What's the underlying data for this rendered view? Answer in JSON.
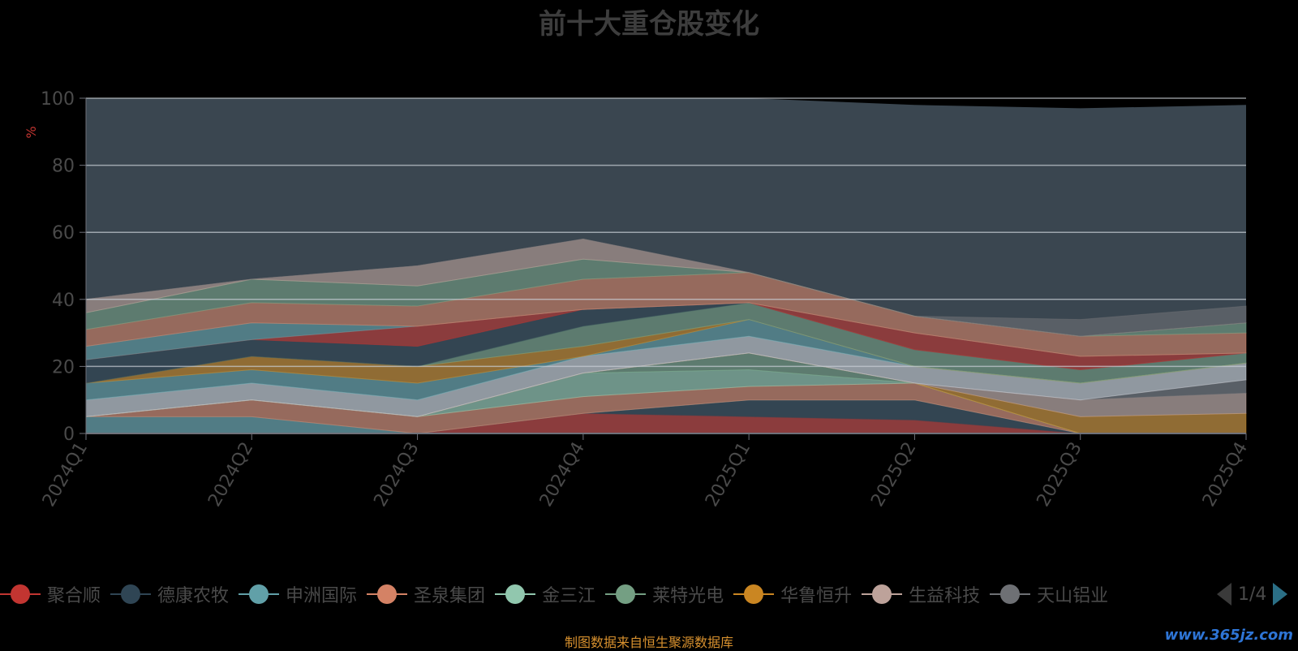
{
  "title": "前十大重仓股变化",
  "source_note": "制图数据来自恒生聚源数据库",
  "watermark": "www.365jz.com",
  "pager": {
    "label": "1/4"
  },
  "colors": {
    "axis": "#6e7079",
    "grid": "#c9ced6",
    "ylabel": "#c23531",
    "total_area": "#3a4650"
  },
  "chart_data": {
    "type": "area",
    "stacked": true,
    "x": [
      "2024Q1",
      "2024Q2",
      "2024Q3",
      "2024Q4",
      "2025Q1",
      "2025Q2",
      "2025Q3",
      "2025Q4"
    ],
    "ylabel": "%",
    "ylim": [
      0,
      100
    ],
    "yticks": [
      0,
      20,
      40,
      60,
      80,
      100
    ],
    "grid": true,
    "legend_position": "bottom",
    "series": [
      {
        "name": "聚合顺",
        "color": "#c23531",
        "values": [
          0,
          0,
          0,
          6,
          5,
          4,
          0,
          0
        ]
      },
      {
        "name": "德康农牧",
        "color": "#2f4554",
        "values": [
          0,
          0,
          0,
          0,
          5,
          6,
          0,
          0
        ]
      },
      {
        "name": "申洲国际",
        "color": "#61a0a8",
        "values": [
          5,
          5,
          0,
          0,
          0,
          0,
          0,
          0
        ]
      },
      {
        "name": "圣泉集团",
        "color": "#d48265",
        "values": [
          0,
          5,
          5,
          5,
          4,
          5,
          0,
          0
        ]
      },
      {
        "name": "金三江",
        "color": "#91c7ae",
        "values": [
          0,
          0,
          0,
          7,
          5,
          0,
          0,
          0
        ]
      },
      {
        "name": "莱特光电",
        "color": "#749f83",
        "values": [
          0,
          0,
          0,
          0,
          5,
          0,
          0,
          0
        ]
      },
      {
        "name": "华鲁恒升",
        "color": "#ca8622",
        "values": [
          0,
          0,
          0,
          0,
          0,
          0,
          5,
          6
        ]
      },
      {
        "name": "生益科技",
        "color": "#bda29a",
        "values": [
          0,
          0,
          0,
          0,
          0,
          0,
          5,
          6
        ]
      },
      {
        "name": "天山铝业",
        "color": "#6e7074",
        "values": [
          0,
          0,
          0,
          0,
          0,
          0,
          0,
          4
        ]
      },
      {
        "name": "",
        "color": "#c9ced6",
        "values": [
          5,
          5,
          5,
          5,
          5,
          5,
          5,
          5
        ]
      },
      {
        "name": "",
        "color": "#61a0a8",
        "values": [
          5,
          4,
          5,
          0,
          5,
          0,
          0,
          0
        ]
      },
      {
        "name": "",
        "color": "#ca8622",
        "values": [
          0,
          4,
          5,
          3,
          0,
          0,
          0,
          0
        ]
      },
      {
        "name": "",
        "color": "#749f83",
        "values": [
          0,
          0,
          0,
          6,
          5,
          5,
          4,
          3
        ]
      },
      {
        "name": "",
        "color": "#2f4554",
        "values": [
          7,
          5,
          6,
          5,
          0,
          0,
          0,
          0
        ]
      },
      {
        "name": "",
        "color": "#c23531",
        "values": [
          0,
          0,
          6,
          0,
          0,
          5,
          4,
          0
        ]
      },
      {
        "name": "",
        "color": "#61a0a8",
        "values": [
          4,
          5,
          0,
          0,
          0,
          0,
          0,
          0
        ]
      },
      {
        "name": "",
        "color": "#d48265",
        "values": [
          5,
          6,
          6,
          9,
          9,
          5,
          6,
          6
        ]
      },
      {
        "name": "",
        "color": "#749f83",
        "values": [
          5,
          7,
          6,
          6,
          0,
          0,
          0,
          3
        ]
      },
      {
        "name": "",
        "color": "#bda29a",
        "values": [
          4,
          0,
          6,
          6,
          0,
          0,
          0,
          0
        ]
      },
      {
        "name": "",
        "color": "#6e7074",
        "values": [
          0,
          0,
          0,
          0,
          0,
          0,
          5,
          5
        ]
      }
    ],
    "total_area_top": [
      100,
      100,
      100,
      100,
      100,
      98,
      97,
      98
    ]
  }
}
